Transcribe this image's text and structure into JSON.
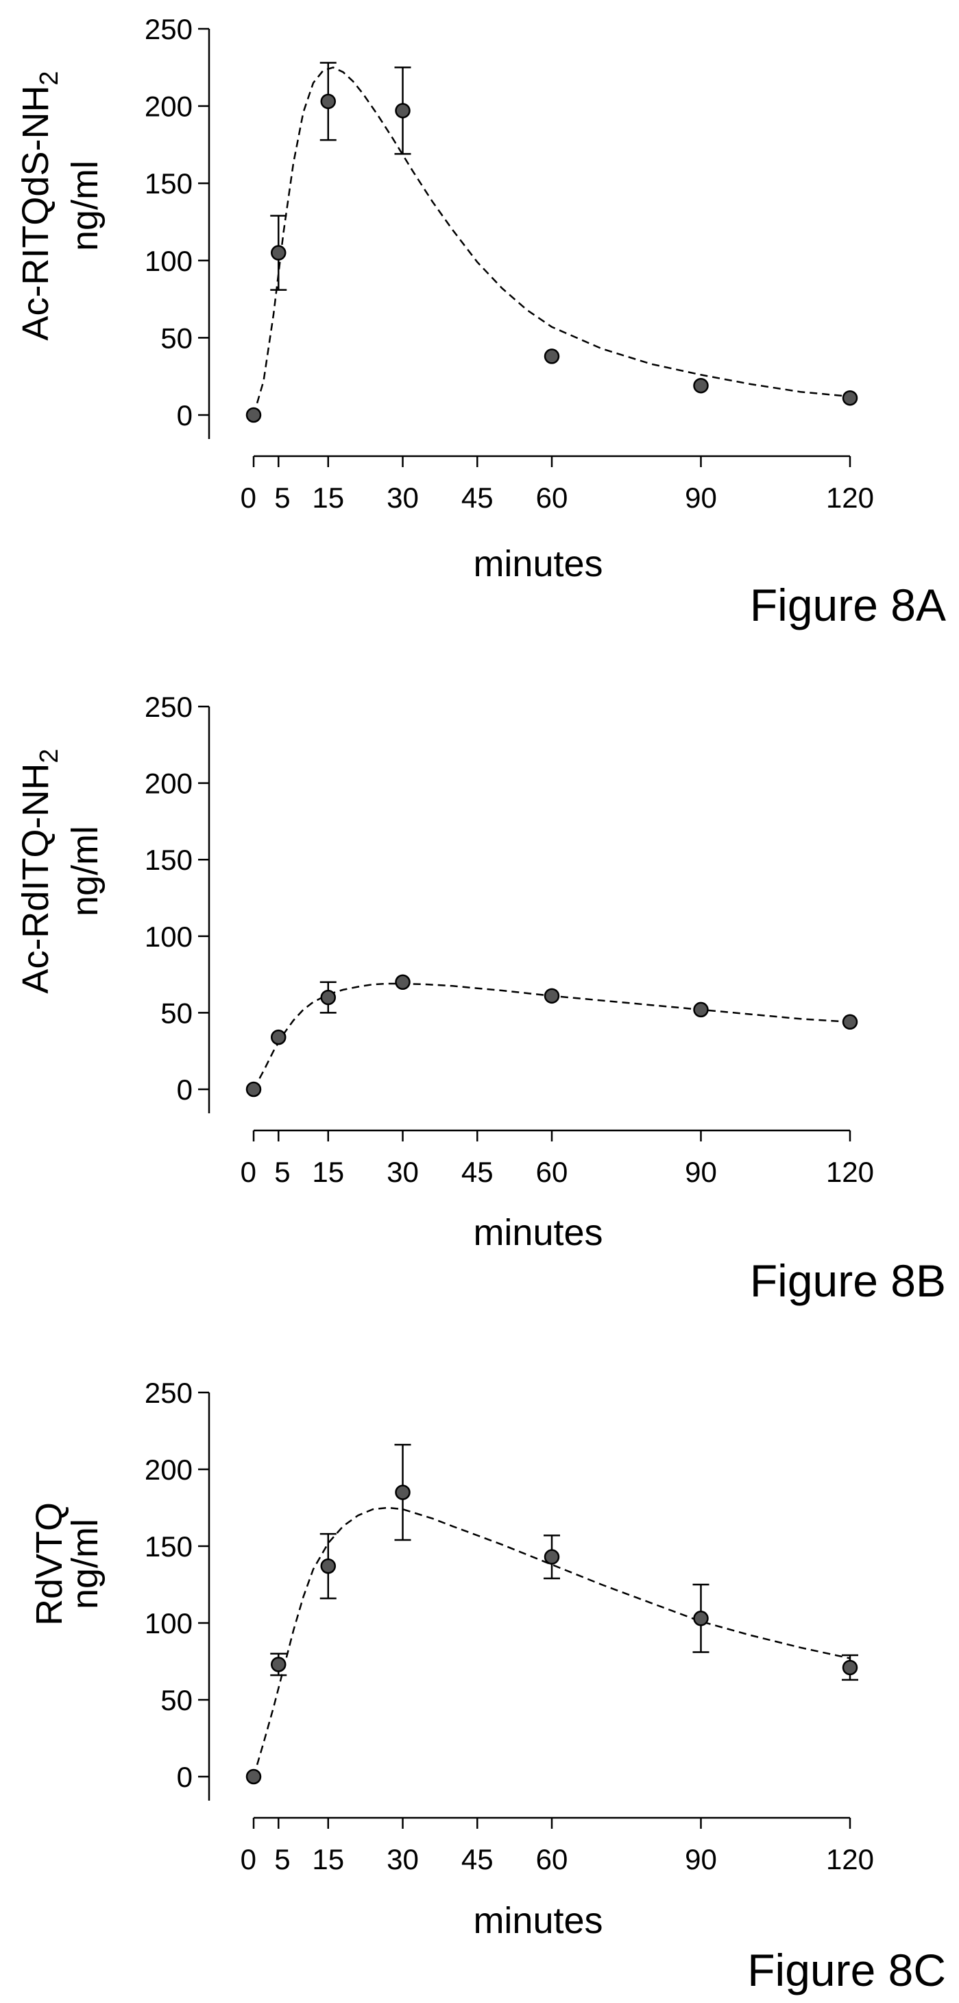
{
  "chart_data": [
    {
      "type": "scatter",
      "figure_label": "Figure 8A",
      "ylabel_main": "Ac-RITQdS-NH",
      "ylabel_sub": "2",
      "ylabel_unit": "ng/ml",
      "xlabel": "minutes",
      "xlim": [
        0,
        120
      ],
      "ylim": [
        0,
        250
      ],
      "xticks": [
        0,
        5,
        15,
        30,
        45,
        60,
        90,
        120
      ],
      "yticks": [
        0,
        50,
        100,
        150,
        200,
        250
      ],
      "series": [
        {
          "x": [
            0,
            5,
            15,
            30,
            60,
            90,
            120
          ],
          "y": [
            0,
            105,
            203,
            197,
            38,
            19,
            11
          ],
          "error": [
            null,
            24,
            25,
            28,
            null,
            null,
            null
          ]
        }
      ],
      "fit_curve": {
        "x": [
          0,
          2,
          4,
          6,
          8,
          10,
          12,
          14,
          16,
          18,
          20,
          22,
          25,
          28,
          32,
          36,
          40,
          45,
          50,
          55,
          60,
          70,
          80,
          90,
          100,
          110,
          120
        ],
        "y": [
          0,
          22,
          65,
          118,
          163,
          196,
          215,
          223,
          225,
          222,
          216,
          208,
          194,
          179,
          158,
          138,
          120,
          99,
          82,
          68,
          57,
          43,
          33,
          26,
          20,
          15,
          12
        ]
      }
    },
    {
      "type": "scatter",
      "figure_label": "Figure 8B",
      "ylabel_main": "Ac-RdITQ-NH",
      "ylabel_sub": "2",
      "ylabel_unit": "ng/ml",
      "xlabel": "minutes",
      "xlim": [
        0,
        120
      ],
      "ylim": [
        0,
        250
      ],
      "xticks": [
        0,
        5,
        15,
        30,
        45,
        60,
        90,
        120
      ],
      "yticks": [
        0,
        50,
        100,
        150,
        200,
        250
      ],
      "series": [
        {
          "x": [
            0,
            5,
            15,
            30,
            60,
            90,
            120
          ],
          "y": [
            0,
            34,
            60,
            70,
            61,
            52,
            44
          ],
          "error": [
            null,
            null,
            10,
            null,
            null,
            null,
            null
          ]
        }
      ],
      "fit_curve": {
        "x": [
          0,
          2,
          4,
          6,
          8,
          10,
          12,
          15,
          18,
          21,
          24,
          27,
          30,
          35,
          40,
          45,
          50,
          60,
          70,
          80,
          90,
          100,
          110,
          120
        ],
        "y": [
          0,
          12,
          25,
          36,
          45,
          52,
          57,
          62,
          65,
          67,
          68.5,
          69,
          69,
          68.5,
          67.5,
          66,
          64.5,
          61,
          58,
          55,
          52,
          49,
          46,
          44
        ]
      }
    },
    {
      "type": "scatter",
      "figure_label": "Figure 8C",
      "ylabel_main": "RdVTQ",
      "ylabel_sub": "",
      "ylabel_unit": "ng/ml",
      "xlabel": "minutes",
      "xlim": [
        0,
        120
      ],
      "ylim": [
        0,
        250
      ],
      "xticks": [
        0,
        5,
        15,
        30,
        45,
        60,
        90,
        120
      ],
      "yticks": [
        0,
        50,
        100,
        150,
        200,
        250
      ],
      "series": [
        {
          "x": [
            0,
            5,
            15,
            30,
            60,
            90,
            120
          ],
          "y": [
            0,
            73,
            137,
            185,
            143,
            103,
            71
          ],
          "error": [
            null,
            7,
            21,
            31,
            14,
            22,
            8
          ]
        }
      ],
      "fit_curve": {
        "x": [
          0,
          2,
          4,
          6,
          8,
          10,
          12,
          15,
          18,
          21,
          24,
          27,
          30,
          33,
          36,
          40,
          45,
          50,
          60,
          70,
          80,
          90,
          100,
          110,
          120
        ],
        "y": [
          0,
          22,
          45,
          70,
          95,
          117,
          135,
          152,
          163,
          170,
          174,
          175,
          174,
          171,
          168,
          163,
          157,
          151,
          138,
          125,
          113,
          101,
          92,
          84,
          77
        ]
      }
    }
  ]
}
